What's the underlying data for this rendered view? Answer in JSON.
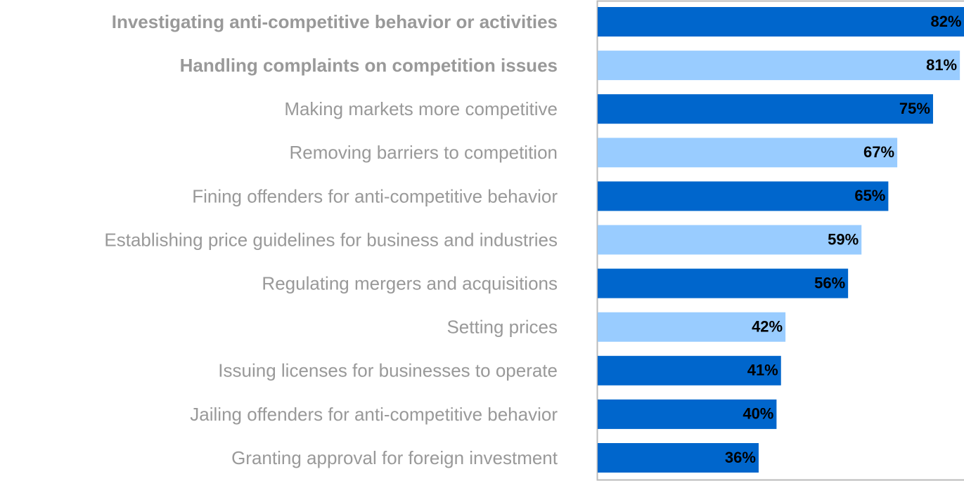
{
  "chart_data": {
    "type": "barh",
    "categories": [
      "Investigating anti-competitive behavior or activities",
      "Handling complaints on competition issues",
      "Making markets more competitive",
      "Removing barriers to competition",
      "Fining offenders for anti-competitive behavior",
      "Establishing price guidelines for business and industries",
      "Regulating mergers and acquisitions",
      "Setting prices",
      "Issuing licenses for businesses to operate",
      "Jailing offenders for anti-competitive behavior",
      "Granting approval for foreign investment"
    ],
    "label_weights": [
      "bold",
      "bold",
      "normal",
      "normal",
      "normal",
      "normal",
      "normal",
      "normal",
      "normal",
      "normal",
      "normal"
    ],
    "values": [
      82,
      81,
      75,
      67,
      65,
      59,
      56,
      42,
      41,
      40,
      36
    ],
    "value_labels": [
      "82%",
      "81%",
      "75%",
      "67%",
      "65%",
      "59%",
      "56%",
      "42%",
      "41%",
      "40%",
      "36%"
    ],
    "colors": [
      "#0066cc",
      "#99ccff",
      "#0066cc",
      "#99ccff",
      "#0066cc",
      "#99ccff",
      "#0066cc",
      "#99ccff",
      "#0066cc",
      "#0066cc",
      "#0066cc"
    ],
    "xlim": [
      0,
      82
    ]
  }
}
